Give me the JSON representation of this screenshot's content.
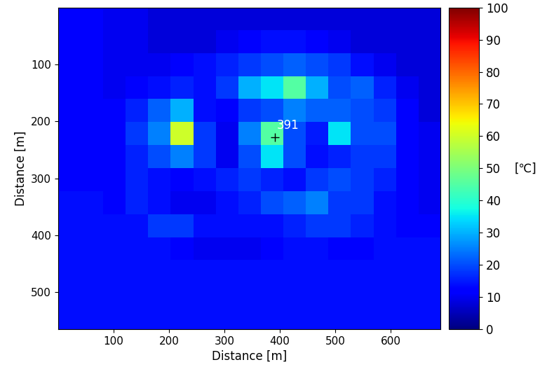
{
  "chart_data": {
    "type": "heatmap",
    "xlabel": "Distance [m]",
    "ylabel": "Distance [m]",
    "xlim": [
      0,
      690
    ],
    "ylim": [
      565,
      0
    ],
    "xticks": [
      100,
      200,
      300,
      400,
      500,
      600
    ],
    "yticks": [
      100,
      200,
      300,
      400,
      500
    ],
    "cells": [
      [
        12,
        12,
        10,
        10,
        8,
        8,
        8,
        8,
        8,
        8,
        8,
        8,
        8,
        8,
        8,
        8,
        8
      ],
      [
        12,
        12,
        10,
        10,
        8,
        8,
        8,
        10,
        12,
        14,
        14,
        12,
        10,
        8,
        8,
        8,
        8
      ],
      [
        12,
        12,
        10,
        10,
        10,
        12,
        14,
        16,
        18,
        20,
        22,
        20,
        18,
        14,
        10,
        8,
        8
      ],
      [
        12,
        12,
        10,
        12,
        14,
        16,
        14,
        18,
        30,
        35,
        45,
        30,
        20,
        22,
        16,
        10,
        8
      ],
      [
        12,
        12,
        12,
        16,
        22,
        30,
        14,
        12,
        18,
        20,
        25,
        22,
        22,
        20,
        18,
        12,
        8
      ],
      [
        12,
        12,
        12,
        18,
        25,
        60,
        18,
        10,
        25,
        45,
        20,
        15,
        35,
        20,
        20,
        12,
        10
      ],
      [
        12,
        12,
        12,
        16,
        20,
        25,
        18,
        10,
        20,
        35,
        20,
        14,
        16,
        18,
        18,
        12,
        10
      ],
      [
        12,
        12,
        12,
        16,
        14,
        12,
        14,
        16,
        18,
        16,
        14,
        18,
        20,
        18,
        16,
        12,
        10
      ],
      [
        14,
        14,
        12,
        16,
        14,
        10,
        10,
        14,
        16,
        20,
        22,
        25,
        18,
        18,
        14,
        12,
        10
      ],
      [
        14,
        14,
        14,
        14,
        18,
        18,
        14,
        14,
        14,
        14,
        16,
        18,
        18,
        16,
        14,
        12,
        12
      ],
      [
        14,
        14,
        14,
        14,
        14,
        12,
        10,
        10,
        10,
        12,
        14,
        14,
        12,
        12,
        14,
        14,
        14
      ],
      [
        14,
        14,
        14,
        14,
        14,
        14,
        14,
        14,
        14,
        14,
        14,
        14,
        14,
        14,
        14,
        14,
        14
      ],
      [
        14,
        14,
        14,
        14,
        14,
        14,
        14,
        14,
        14,
        14,
        14,
        14,
        14,
        14,
        14,
        14,
        14
      ],
      [
        14,
        14,
        14,
        14,
        14,
        14,
        14,
        14,
        14,
        14,
        14,
        14,
        14,
        14,
        14,
        14,
        14
      ]
    ],
    "colorbar": {
      "range": [
        0,
        100
      ],
      "ticks": [
        0,
        10,
        20,
        30,
        40,
        50,
        60,
        70,
        80,
        90,
        100
      ],
      "label": "[℃]"
    },
    "annotations": [
      {
        "x": 391,
        "y": 228,
        "text": "391",
        "marker": "plus"
      }
    ]
  }
}
